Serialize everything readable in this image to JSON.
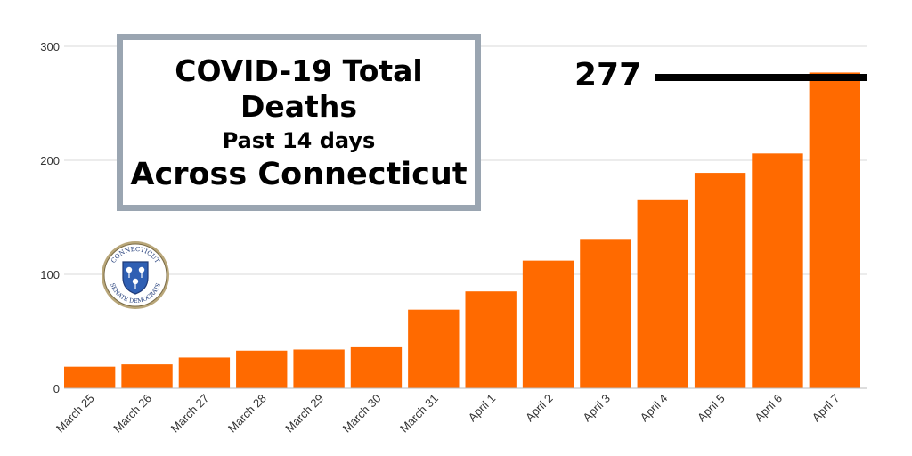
{
  "title": {
    "line1": "COVID-19 Total",
    "line2": "Deaths",
    "subtitle": "Past 14 days",
    "line3": "Across Connecticut"
  },
  "annotation": {
    "label": "277",
    "value": 277
  },
  "seal": {
    "text_top": "CONNECTICUT",
    "text_bottom": "SENATE DEMOCRATS",
    "icon": "state-seal-icon"
  },
  "colors": {
    "bar": "#ff6a00",
    "grid": "#d9d9d9",
    "title_border": "#9aa5b1"
  },
  "chart_data": {
    "type": "bar",
    "categories": [
      "March 25",
      "March 26",
      "March 27",
      "March 28",
      "March 29",
      "March 30",
      "March 31",
      "April 1",
      "April 2",
      "April 3",
      "April 4",
      "April 5",
      "April 6",
      "April 7"
    ],
    "values": [
      19,
      21,
      27,
      33,
      34,
      36,
      69,
      85,
      112,
      131,
      165,
      189,
      206,
      277
    ],
    "yticks": [
      0,
      100,
      200,
      300
    ],
    "ylim": [
      0,
      300
    ],
    "grid": true,
    "xlabel": "",
    "ylabel": ""
  }
}
